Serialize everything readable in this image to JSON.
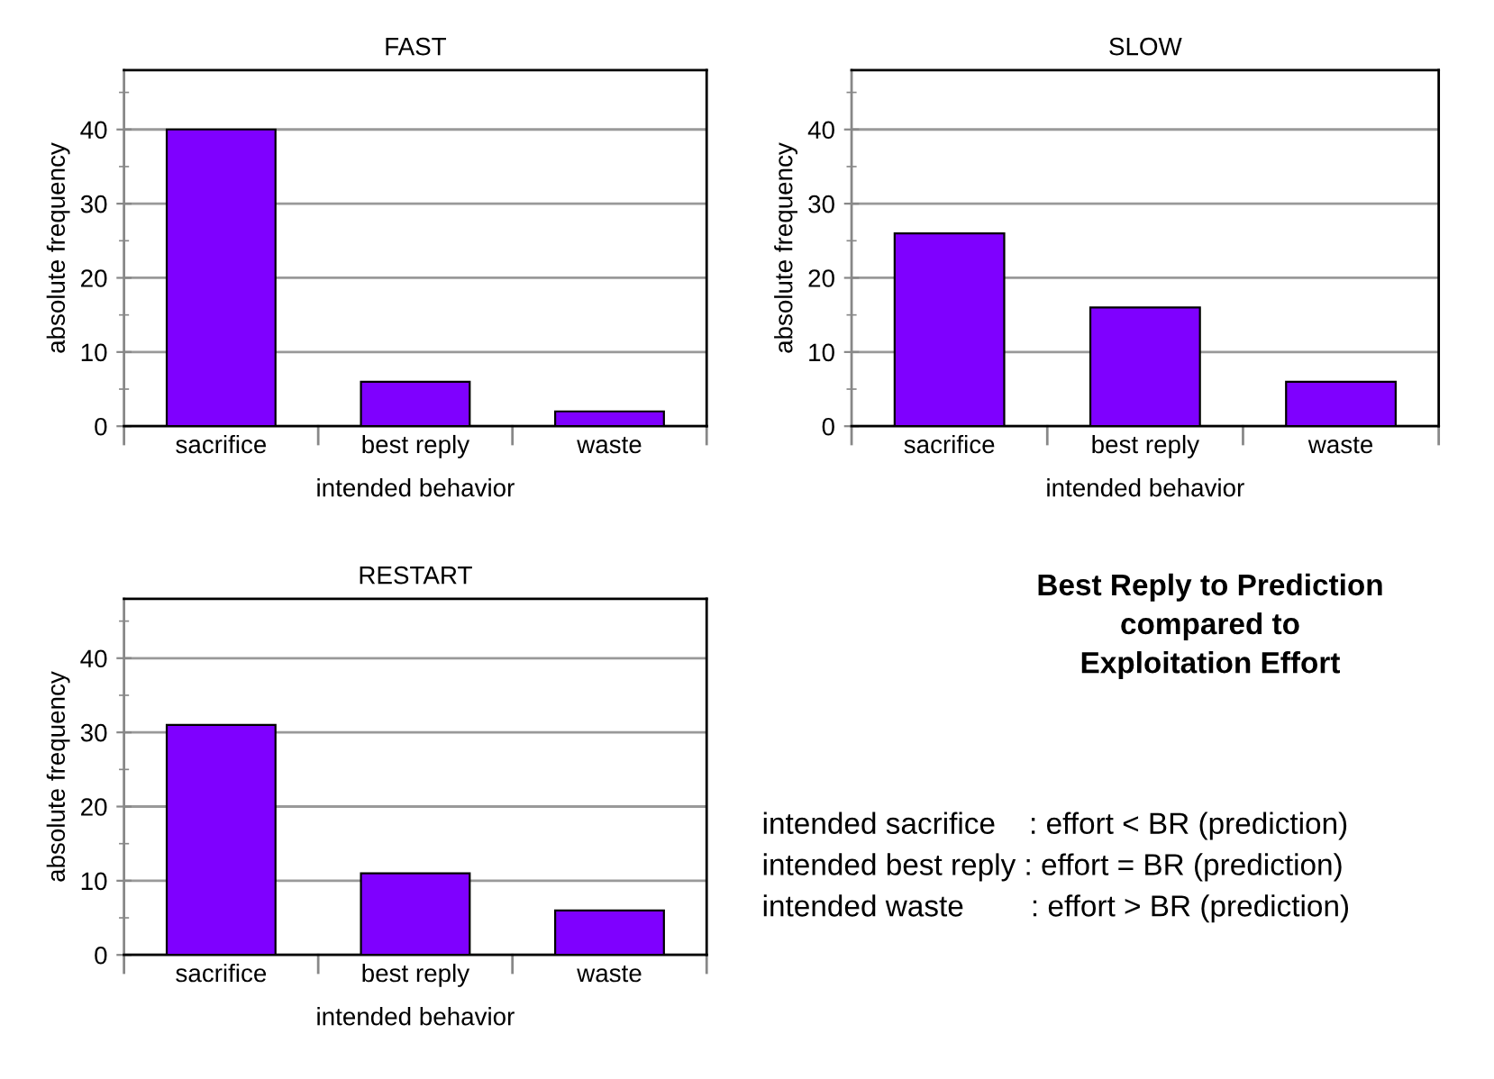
{
  "chart_data": [
    {
      "type": "bar",
      "title": "FAST",
      "xlabel": "intended behavior",
      "ylabel": "absolute frequency",
      "categories": [
        "sacrifice",
        "best reply",
        "waste"
      ],
      "values": [
        40,
        6,
        2
      ],
      "color": "#7f00ff",
      "ylim": [
        0,
        48
      ],
      "yticks": [
        0,
        {
          "value": 5,
          "label": null
        },
        10,
        {
          "value": 15,
          "label": null
        },
        20,
        {
          "value": 25,
          "label": null
        },
        30,
        {
          "value": 35,
          "label": null
        },
        40,
        {
          "value": 45,
          "label": null
        }
      ],
      "grid": "y"
    },
    {
      "type": "bar",
      "title": "SLOW",
      "xlabel": "intended behavior",
      "ylabel": "absolute frequency",
      "categories": [
        "sacrifice",
        "best reply",
        "waste"
      ],
      "values": [
        26,
        16,
        6
      ],
      "color": "#7f00ff",
      "ylim": [
        0,
        48
      ],
      "yticks": [
        0,
        {
          "value": 5,
          "label": null
        },
        10,
        {
          "value": 15,
          "label": null
        },
        20,
        {
          "value": 25,
          "label": null
        },
        30,
        {
          "value": 35,
          "label": null
        },
        40,
        {
          "value": 45,
          "label": null
        }
      ],
      "grid": "y"
    },
    {
      "type": "bar",
      "title": "RESTART",
      "xlabel": "intended behavior",
      "ylabel": "absolute frequency",
      "categories": [
        "sacrifice",
        "best reply",
        "waste"
      ],
      "values": [
        31,
        11,
        6
      ],
      "color": "#7f00ff",
      "ylim": [
        0,
        48
      ],
      "yticks": [
        0,
        {
          "value": 5,
          "label": null
        },
        10,
        {
          "value": 15,
          "label": null
        },
        20,
        {
          "value": 25,
          "label": null
        },
        30,
        {
          "value": 35,
          "label": null
        },
        40,
        {
          "value": 45,
          "label": null
        }
      ],
      "grid": "y"
    },
    {
      "type": "other",
      "title": "Best Reply to Prediction\ncompared to\nExploitation Effort",
      "annotations": [
        "intended sacrifice    : effort < BR (prediction)",
        "intended best reply : effort = BR (prediction)",
        "intended waste        : effort > BR (prediction)"
      ]
    }
  ]
}
